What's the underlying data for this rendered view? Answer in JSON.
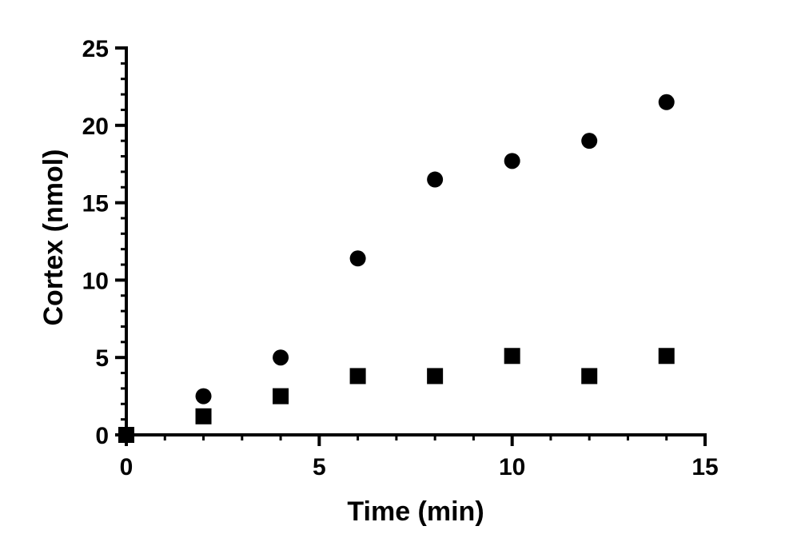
{
  "chart_data": {
    "type": "scatter",
    "title": "",
    "xlabel": "Time (min)",
    "ylabel": "Cortex  (nmol)",
    "xlim": [
      0,
      15
    ],
    "ylim": [
      0,
      25
    ],
    "x_ticks": [
      "0",
      "5",
      "10",
      "15"
    ],
    "y_ticks": [
      "0",
      "5",
      "10",
      "15",
      "20",
      "25"
    ],
    "grid": false,
    "legend": "none",
    "series": [
      {
        "marker": "circle",
        "color": "#000000",
        "points": [
          {
            "x": 0,
            "y": 0
          },
          {
            "x": 2,
            "y": 2.5
          },
          {
            "x": 4,
            "y": 5.0
          },
          {
            "x": 6,
            "y": 11.4
          },
          {
            "x": 8,
            "y": 16.5
          },
          {
            "x": 10,
            "y": 17.7
          },
          {
            "x": 12,
            "y": 19.0
          },
          {
            "x": 14,
            "y": 21.5
          }
        ]
      },
      {
        "marker": "square",
        "color": "#000000",
        "points": [
          {
            "x": 0,
            "y": 0
          },
          {
            "x": 2,
            "y": 1.2
          },
          {
            "x": 4,
            "y": 2.5
          },
          {
            "x": 6,
            "y": 3.8
          },
          {
            "x": 8,
            "y": 3.8
          },
          {
            "x": 10,
            "y": 5.1
          },
          {
            "x": 12,
            "y": 3.8
          },
          {
            "x": 14,
            "y": 5.1
          }
        ]
      }
    ]
  }
}
